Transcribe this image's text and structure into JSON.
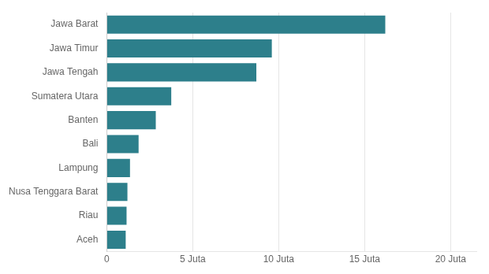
{
  "chart_data": {
    "type": "bar",
    "orientation": "horizontal",
    "categories": [
      "Aceh",
      "Riau",
      "Nusa Tenggara Barat",
      "Lampung",
      "Bali",
      "Banten",
      "Sumatera Utara",
      "Jawa Tengah",
      "Jawa Timur",
      "Jawa Barat"
    ],
    "values": [
      1.1,
      1.15,
      1.2,
      1.35,
      1.85,
      2.85,
      3.75,
      8.7,
      9.6,
      16.2
    ],
    "color": "#2d7f8b",
    "xlim": [
      0,
      21.5
    ],
    "xticks": [
      0,
      {
        "value": 5,
        "label": "5 Juta"
      },
      {
        "value": 10,
        "label": "10 Juta"
      },
      {
        "value": 15,
        "label": "15 Juta"
      },
      {
        "value": 20,
        "label": "20 Juta"
      }
    ],
    "grid": true
  }
}
